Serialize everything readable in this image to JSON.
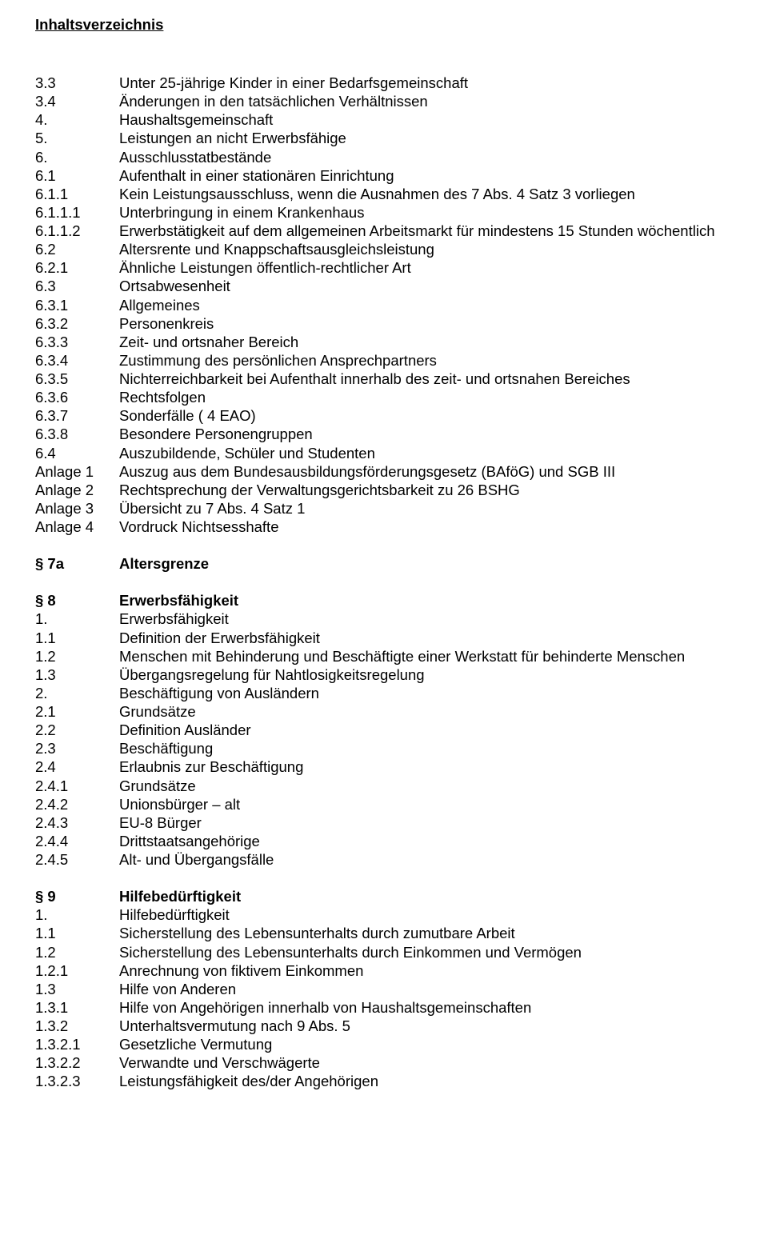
{
  "header": {
    "title": "Inhaltsverzeichnis"
  },
  "entries": [
    {
      "num": "3.3",
      "text": "Unter 25-jährige Kinder in einer Bedarfsgemeinschaft",
      "bold": false
    },
    {
      "num": "3.4",
      "text": "Änderungen in den tatsächlichen Verhältnissen",
      "bold": false
    },
    {
      "num": "4.",
      "text": "Haushaltsgemeinschaft",
      "bold": false
    },
    {
      "num": "5.",
      "text": "Leistungen an nicht Erwerbsfähige",
      "bold": false
    },
    {
      "num": "6.",
      "text": "Ausschlusstatbestände",
      "bold": false
    },
    {
      "num": "6.1",
      "text": "Aufenthalt in einer stationären Einrichtung",
      "bold": false
    },
    {
      "num": "6.1.1",
      "text": "Kein Leistungsausschluss, wenn die Ausnahmen des 7 Abs. 4 Satz 3 vorliegen",
      "bold": false
    },
    {
      "num": "6.1.1.1",
      "text": "Unterbringung in einem Krankenhaus",
      "bold": false
    },
    {
      "num": "6.1.1.2",
      "text": "Erwerbstätigkeit auf dem allgemeinen Arbeitsmarkt für mindestens 15 Stunden wöchentlich",
      "bold": false
    },
    {
      "num": "6.2",
      "text": "Altersrente und Knappschaftsausgleichsleistung",
      "bold": false
    },
    {
      "num": "6.2.1",
      "text": "Ähnliche Leistungen öffentlich-rechtlicher Art",
      "bold": false
    },
    {
      "num": "6.3",
      "text": "Ortsabwesenheit",
      "bold": false
    },
    {
      "num": "6.3.1",
      "text": "Allgemeines",
      "bold": false
    },
    {
      "num": "6.3.2",
      "text": "Personenkreis",
      "bold": false
    },
    {
      "num": "6.3.3",
      "text": "Zeit- und ortsnaher Bereich",
      "bold": false
    },
    {
      "num": "6.3.4",
      "text": "Zustimmung des persönlichen Ansprechpartners",
      "bold": false
    },
    {
      "num": "6.3.5",
      "text": "Nichterreichbarkeit bei Aufenthalt innerhalb des zeit- und ortsnahen Bereiches",
      "bold": false
    },
    {
      "num": "6.3.6",
      "text": "Rechtsfolgen",
      "bold": false
    },
    {
      "num": "6.3.7",
      "text": "Sonderfälle ( 4 EAO)",
      "bold": false
    },
    {
      "num": "6.3.8",
      "text": "Besondere Personengruppen",
      "bold": false
    },
    {
      "num": "6.4",
      "text": "Auszubildende, Schüler und Studenten",
      "bold": false
    },
    {
      "num": "Anlage 1",
      "text": "Auszug aus dem Bundesausbildungsförderungsgesetz (BAföG) und SGB III",
      "bold": false
    },
    {
      "num": "Anlage 2",
      "text": "Rechtsprechung der Verwaltungsgerichtsbarkeit zu 26 BSHG",
      "bold": false
    },
    {
      "num": "Anlage 3",
      "text": "Übersicht zu 7 Abs. 4 Satz 1",
      "bold": false
    },
    {
      "num": "Anlage 4",
      "text": "Vordruck Nichtsesshafte",
      "bold": false
    },
    {
      "gap": true
    },
    {
      "num": "§ 7a",
      "text": "Altersgrenze",
      "bold": true
    },
    {
      "gap": true
    },
    {
      "num": "§ 8",
      "text": "Erwerbsfähigkeit",
      "bold": true
    },
    {
      "num": "1.",
      "text": "Erwerbsfähigkeit",
      "bold": false
    },
    {
      "num": "1.1",
      "text": "Definition der Erwerbsfähigkeit",
      "bold": false
    },
    {
      "num": "1.2",
      "text": "Menschen mit Behinderung und Beschäftigte einer Werkstatt für behinderte Menschen",
      "bold": false
    },
    {
      "num": "1.3",
      "text": "Übergangsregelung für Nahtlosigkeitsregelung",
      "bold": false
    },
    {
      "num": "2.",
      "text": "Beschäftigung von Ausländern",
      "bold": false
    },
    {
      "num": "2.1",
      "text": "Grundsätze",
      "bold": false
    },
    {
      "num": "2.2",
      "text": "Definition Ausländer",
      "bold": false
    },
    {
      "num": "2.3",
      "text": "Beschäftigung",
      "bold": false
    },
    {
      "num": "2.4",
      "text": "Erlaubnis zur Beschäftigung",
      "bold": false
    },
    {
      "num": "2.4.1",
      "text": "Grundsätze",
      "bold": false
    },
    {
      "num": "2.4.2",
      "text": "Unionsbürger – alt",
      "bold": false
    },
    {
      "num": "2.4.3",
      "text": "EU-8 Bürger",
      "bold": false
    },
    {
      "num": "2.4.4",
      "text": "Drittstaatsangehörige",
      "bold": false
    },
    {
      "num": "2.4.5",
      "text": "Alt- und Übergangsfälle",
      "bold": false
    },
    {
      "gap": true
    },
    {
      "num": "§ 9",
      "text": "Hilfebedürftigkeit",
      "bold": true
    },
    {
      "num": "1.",
      "text": "Hilfebedürftigkeit",
      "bold": false
    },
    {
      "num": "1.1",
      "text": "Sicherstellung des Lebensunterhalts durch zumutbare Arbeit",
      "bold": false
    },
    {
      "num": "1.2",
      "text": "Sicherstellung des Lebensunterhalts durch Einkommen und Vermögen",
      "bold": false
    },
    {
      "num": "1.2.1",
      "text": "Anrechnung von fiktivem Einkommen",
      "bold": false
    },
    {
      "num": "1.3",
      "text": "Hilfe von Anderen",
      "bold": false
    },
    {
      "num": "1.3.1",
      "text": "Hilfe von Angehörigen innerhalb von Haushaltsgemeinschaften",
      "bold": false
    },
    {
      "num": "1.3.2",
      "text": "Unterhaltsvermutung nach 9 Abs. 5",
      "bold": false
    },
    {
      "num": "1.3.2.1",
      "text": "Gesetzliche Vermutung",
      "bold": false
    },
    {
      "num": "1.3.2.2",
      "text": "Verwandte und Verschwägerte",
      "bold": false
    },
    {
      "num": "1.3.2.3",
      "text": "Leistungsfähigkeit des/der Angehörigen",
      "bold": false
    }
  ]
}
